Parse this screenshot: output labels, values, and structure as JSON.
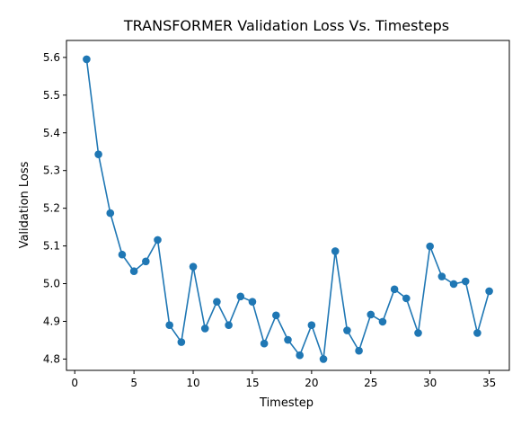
{
  "chart_data": {
    "type": "line",
    "title": "TRANSFORMER Validation Loss Vs. Timesteps",
    "xlabel": "Timestep",
    "ylabel": "Validation Loss",
    "xlim": [
      -0.7,
      36.7
    ],
    "ylim": [
      4.77,
      5.645
    ],
    "xticks": [
      0,
      5,
      10,
      15,
      20,
      25,
      30,
      35
    ],
    "yticks": [
      4.8,
      4.9,
      5.0,
      5.1,
      5.2,
      5.3,
      5.4,
      5.5,
      5.6
    ],
    "grid": false,
    "series": [
      {
        "color": "#1f77b4",
        "marker": "circle",
        "x": [
          1,
          2,
          3,
          4,
          5,
          6,
          7,
          8,
          9,
          10,
          11,
          12,
          13,
          14,
          15,
          16,
          17,
          18,
          19,
          20,
          21,
          22,
          23,
          24,
          25,
          26,
          27,
          28,
          29,
          30,
          31,
          32,
          33,
          34,
          35
        ],
        "values": [
          5.595,
          5.343,
          5.187,
          5.077,
          5.033,
          5.059,
          5.116,
          4.89,
          4.845,
          5.045,
          4.881,
          4.952,
          4.89,
          4.966,
          4.952,
          4.841,
          4.916,
          4.851,
          4.81,
          4.89,
          4.8,
          5.086,
          4.876,
          4.822,
          4.918,
          4.899,
          4.985,
          4.961,
          4.869,
          5.099,
          5.019,
          4.999,
          5.006,
          4.869,
          4.98
        ]
      }
    ]
  }
}
